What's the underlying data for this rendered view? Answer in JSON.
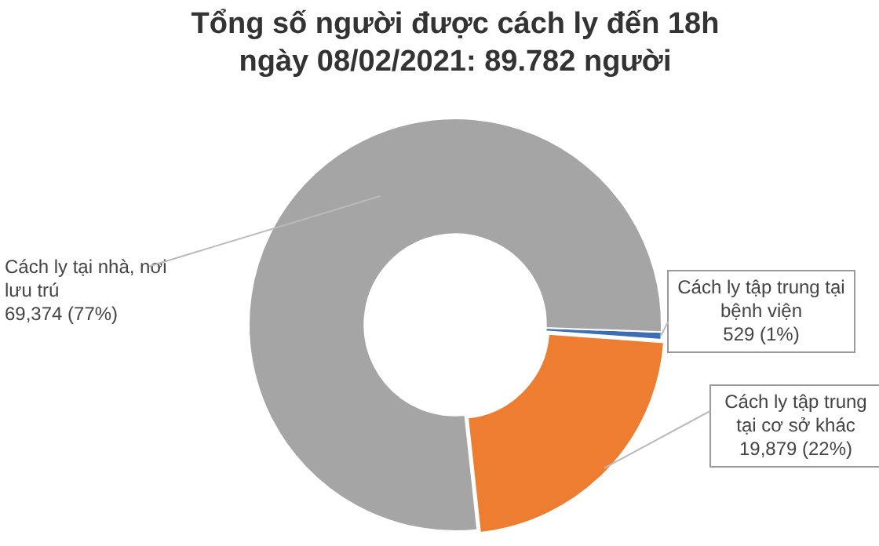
{
  "chart_data": {
    "type": "donut",
    "title": "Tổng số người được cách ly đến 18h ngày 08/02/2021: 89.782 người",
    "categories": [
      "Cách ly tập trung tại bệnh viện",
      "Cách ly tập trung tại cơ sở khác",
      "Cách ly tại nhà, nơi lưu trú"
    ],
    "values": [
      529,
      19879,
      69374
    ],
    "value_labels": [
      "529 (1%)",
      "19,879 (22%)",
      "69,374 (77%)"
    ],
    "colors": [
      "#3d6eb4",
      "#ed7d31",
      "#a5a5a5"
    ],
    "legend": false
  }
}
